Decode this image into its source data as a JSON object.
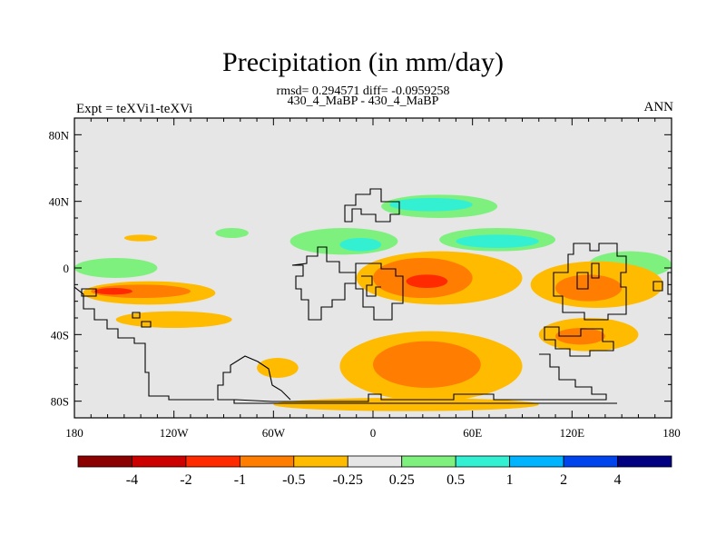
{
  "title": "Precipitation (in mm/day)",
  "stats_line": "rmsd= 0.294571 diff= -0.0959258",
  "subtitle": "430_4_MaBP - 430_4_MaBP",
  "left_label": "Expt = teXVi1-teXVi",
  "right_label": "ANN",
  "chart_data": {
    "type": "heatmap",
    "description_variable": "Precipitation difference (mm/day)",
    "x_ticks": [
      "180",
      "120W",
      "60W",
      "0",
      "60E",
      "120E",
      "180"
    ],
    "y_ticks": [
      "80N",
      "40N",
      "0",
      "40S",
      "80S"
    ],
    "xlim": [
      -180,
      180
    ],
    "ylim": [
      -90,
      90
    ],
    "colorbar": {
      "colors": [
        "#8b0000",
        "#cc0000",
        "#ff2a00",
        "#ff7d00",
        "#ffbb00",
        "#e6e6e6",
        "#7ef07e",
        "#33f0d2",
        "#00b4ff",
        "#0044ee",
        "#000080"
      ],
      "labels": [
        "-4",
        "-2",
        "-1",
        "-0.5",
        "-0.25",
        "0.25",
        "0.5",
        "1",
        "2",
        "4"
      ]
    },
    "background_color": "#e6e6e6",
    "regions": [
      {
        "level": "-0.5",
        "color": "#ffbb00",
        "lon": [
          -175,
          -95
        ],
        "lat": [
          -22,
          -8
        ]
      },
      {
        "level": "-0.5",
        "color": "#ff7d00",
        "lon": [
          -170,
          -110
        ],
        "lat": [
          -18,
          -10
        ]
      },
      {
        "level": "-1",
        "color": "#ff2a00",
        "lon": [
          -168,
          -145
        ],
        "lat": [
          -16,
          -12
        ]
      },
      {
        "level": "-0.5",
        "color": "#ffbb00",
        "lon": [
          -155,
          -85
        ],
        "lat": [
          -36,
          -26
        ]
      },
      {
        "level": "-0.5",
        "color": "#ffbb00",
        "lon": [
          -150,
          -130
        ],
        "lat": [
          16,
          20
        ]
      },
      {
        "level": "0.25",
        "color": "#7ef07e",
        "lon": [
          -180,
          -130
        ],
        "lat": [
          -6,
          6
        ]
      },
      {
        "level": "0.25",
        "color": "#7ef07e",
        "lon": [
          -95,
          -75
        ],
        "lat": [
          18,
          24
        ]
      },
      {
        "level": "0.25",
        "color": "#7ef07e",
        "lon": [
          -50,
          15
        ],
        "lat": [
          8,
          24
        ]
      },
      {
        "level": "0.5",
        "color": "#33f0d2",
        "lon": [
          -20,
          5
        ],
        "lat": [
          10,
          18
        ]
      },
      {
        "level": "0.25",
        "color": "#7ef07e",
        "lon": [
          5,
          75
        ],
        "lat": [
          30,
          44
        ]
      },
      {
        "level": "0.5",
        "color": "#33f0d2",
        "lon": [
          10,
          60
        ],
        "lat": [
          34,
          42
        ]
      },
      {
        "level": "0.25",
        "color": "#7ef07e",
        "lon": [
          40,
          110
        ],
        "lat": [
          10,
          24
        ]
      },
      {
        "level": "0.5",
        "color": "#33f0d2",
        "lon": [
          50,
          100
        ],
        "lat": [
          12,
          20
        ]
      },
      {
        "level": "0.25",
        "color": "#7ef07e",
        "lon": [
          130,
          180
        ],
        "lat": [
          -6,
          10
        ]
      },
      {
        "level": "-0.5",
        "color": "#ffbb00",
        "lon": [
          -10,
          90
        ],
        "lat": [
          -22,
          10
        ]
      },
      {
        "level": "-0.5",
        "color": "#ff7d00",
        "lon": [
          0,
          60
        ],
        "lat": [
          -18,
          6
        ]
      },
      {
        "level": "-1",
        "color": "#ff2a00",
        "lon": [
          20,
          45
        ],
        "lat": [
          -12,
          -4
        ]
      },
      {
        "level": "-0.5",
        "color": "#ffbb00",
        "lon": [
          95,
          175
        ],
        "lat": [
          -24,
          4
        ]
      },
      {
        "level": "-0.5",
        "color": "#ff7d00",
        "lon": [
          110,
          150
        ],
        "lat": [
          -20,
          -4
        ]
      },
      {
        "level": "-0.5",
        "color": "#ffbb00",
        "lon": [
          100,
          160
        ],
        "lat": [
          -50,
          -30
        ]
      },
      {
        "level": "-0.5",
        "color": "#ff7d00",
        "lon": [
          110,
          140
        ],
        "lat": [
          -46,
          -36
        ]
      },
      {
        "level": "-0.5",
        "color": "#ffbb00",
        "lon": [
          -20,
          90
        ],
        "lat": [
          -80,
          -38
        ]
      },
      {
        "level": "-0.5",
        "color": "#ff7d00",
        "lon": [
          0,
          65
        ],
        "lat": [
          -72,
          -44
        ]
      },
      {
        "level": "-0.5",
        "color": "#ffbb00",
        "lon": [
          -60,
          100
        ],
        "lat": [
          -86,
          -78
        ]
      },
      {
        "level": "-0.25",
        "color": "#ffbb00",
        "lon": [
          -70,
          -45
        ],
        "lat": [
          -66,
          -54
        ]
      }
    ]
  }
}
